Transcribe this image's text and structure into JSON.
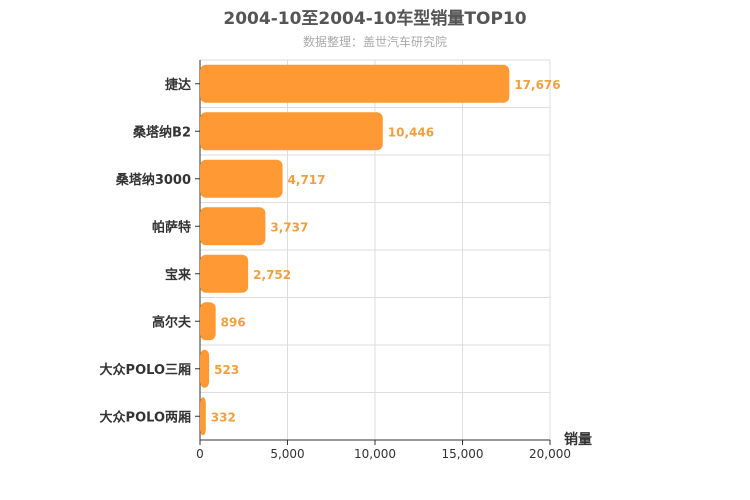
{
  "header": {
    "title": "2004-10至2004-10车型销量TOP10",
    "subtitle": "数据整理：盖世汽车研究院"
  },
  "colors": {
    "bar": "#ff9933",
    "bar_label": "#f0a040",
    "grid": "#dddddd",
    "axis": "#333333"
  },
  "chart_data": {
    "type": "bar",
    "orientation": "horizontal",
    "title": "2004-10至2004-10车型销量TOP10",
    "subtitle": "数据整理：盖世汽车研究院",
    "xlabel": "销量",
    "ylabel": "",
    "categories": [
      "捷达",
      "桑塔纳B2",
      "桑塔纳3000",
      "帕萨特",
      "宝来",
      "高尔夫",
      "大众POLO三厢",
      "大众POLO两厢"
    ],
    "values": [
      17676,
      10446,
      4717,
      3737,
      2752,
      896,
      523,
      332
    ],
    "value_labels": [
      "17,676",
      "10,446",
      "4,717",
      "3,737",
      "2,752",
      "896",
      "523",
      "332"
    ],
    "xlim": [
      0,
      20000
    ],
    "xticks": [
      0,
      5000,
      10000,
      15000,
      20000
    ],
    "xtick_labels": [
      "0",
      "5,000",
      "10,000",
      "15,000",
      "20,000"
    ],
    "grid": true
  }
}
